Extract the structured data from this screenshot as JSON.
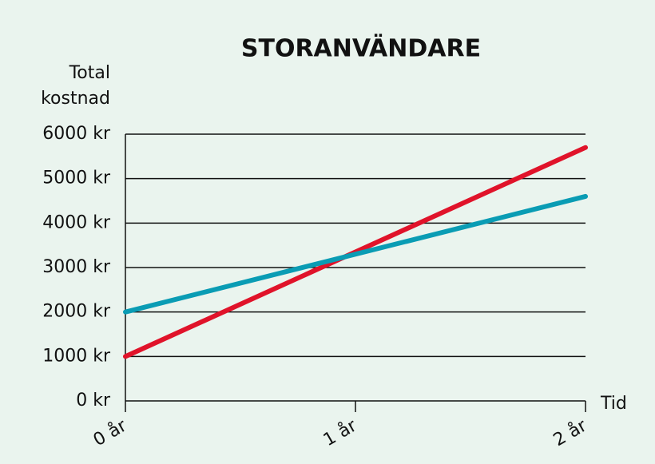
{
  "chart_data": {
    "type": "line",
    "title": "STORANVÄNDARE",
    "ylabel": "Total kostnad",
    "xlabel": "Tid",
    "x": [
      0,
      2
    ],
    "series": [
      {
        "color": "#e0132a",
        "values": [
          1000,
          5700
        ]
      },
      {
        "color": "#0a9cb4",
        "values": [
          2000,
          4600
        ]
      }
    ],
    "xlim": [
      0,
      2
    ],
    "xticks": [
      {
        "value": 0,
        "label": "0 år"
      },
      {
        "value": 1,
        "label": "1 år"
      },
      {
        "value": 2,
        "label": "2 år"
      }
    ],
    "ylim": [
      0,
      6000
    ],
    "yticks": [
      {
        "value": 0,
        "label": "0 kr"
      },
      {
        "value": 1000,
        "label": "1000 kr"
      },
      {
        "value": 2000,
        "label": "2000 kr"
      },
      {
        "value": 3000,
        "label": "3000 kr"
      },
      {
        "value": 4000,
        "label": "4000 kr"
      },
      {
        "value": 5000,
        "label": "5000 kr"
      },
      {
        "value": 6000,
        "label": "6000 kr"
      }
    ],
    "grid": true
  }
}
